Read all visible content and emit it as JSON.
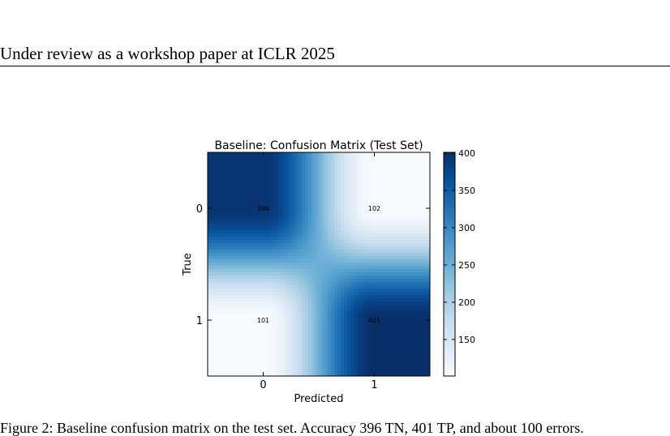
{
  "header": {
    "running_head": "Under review as a workshop paper at ICLR 2025"
  },
  "caption": "Figure 2: Baseline confusion matrix on the test set. Accuracy 396 TN, 401 TP, and about 100 errors.",
  "chart_data": {
    "type": "heatmap",
    "title": "Baseline: Confusion Matrix (Test Set)",
    "xlabel": "Predicted",
    "ylabel": "True",
    "x_categories": [
      "0",
      "1"
    ],
    "y_categories": [
      "0",
      "1"
    ],
    "values": [
      [
        396,
        102
      ],
      [
        101,
        401
      ]
    ],
    "cell_labels": [
      [
        "396",
        "102"
      ],
      [
        "101",
        "401"
      ]
    ],
    "colormap": "Blues",
    "interpolation": "smooth",
    "colorbar": {
      "range": [
        101,
        401
      ],
      "ticks": [
        150,
        200,
        250,
        300,
        350,
        400
      ],
      "tick_labels": [
        "150",
        "200",
        "250",
        "300",
        "350",
        "400"
      ],
      "placement": "right"
    },
    "colors": {
      "low": "#f7fbff",
      "high": "#08306b"
    }
  }
}
